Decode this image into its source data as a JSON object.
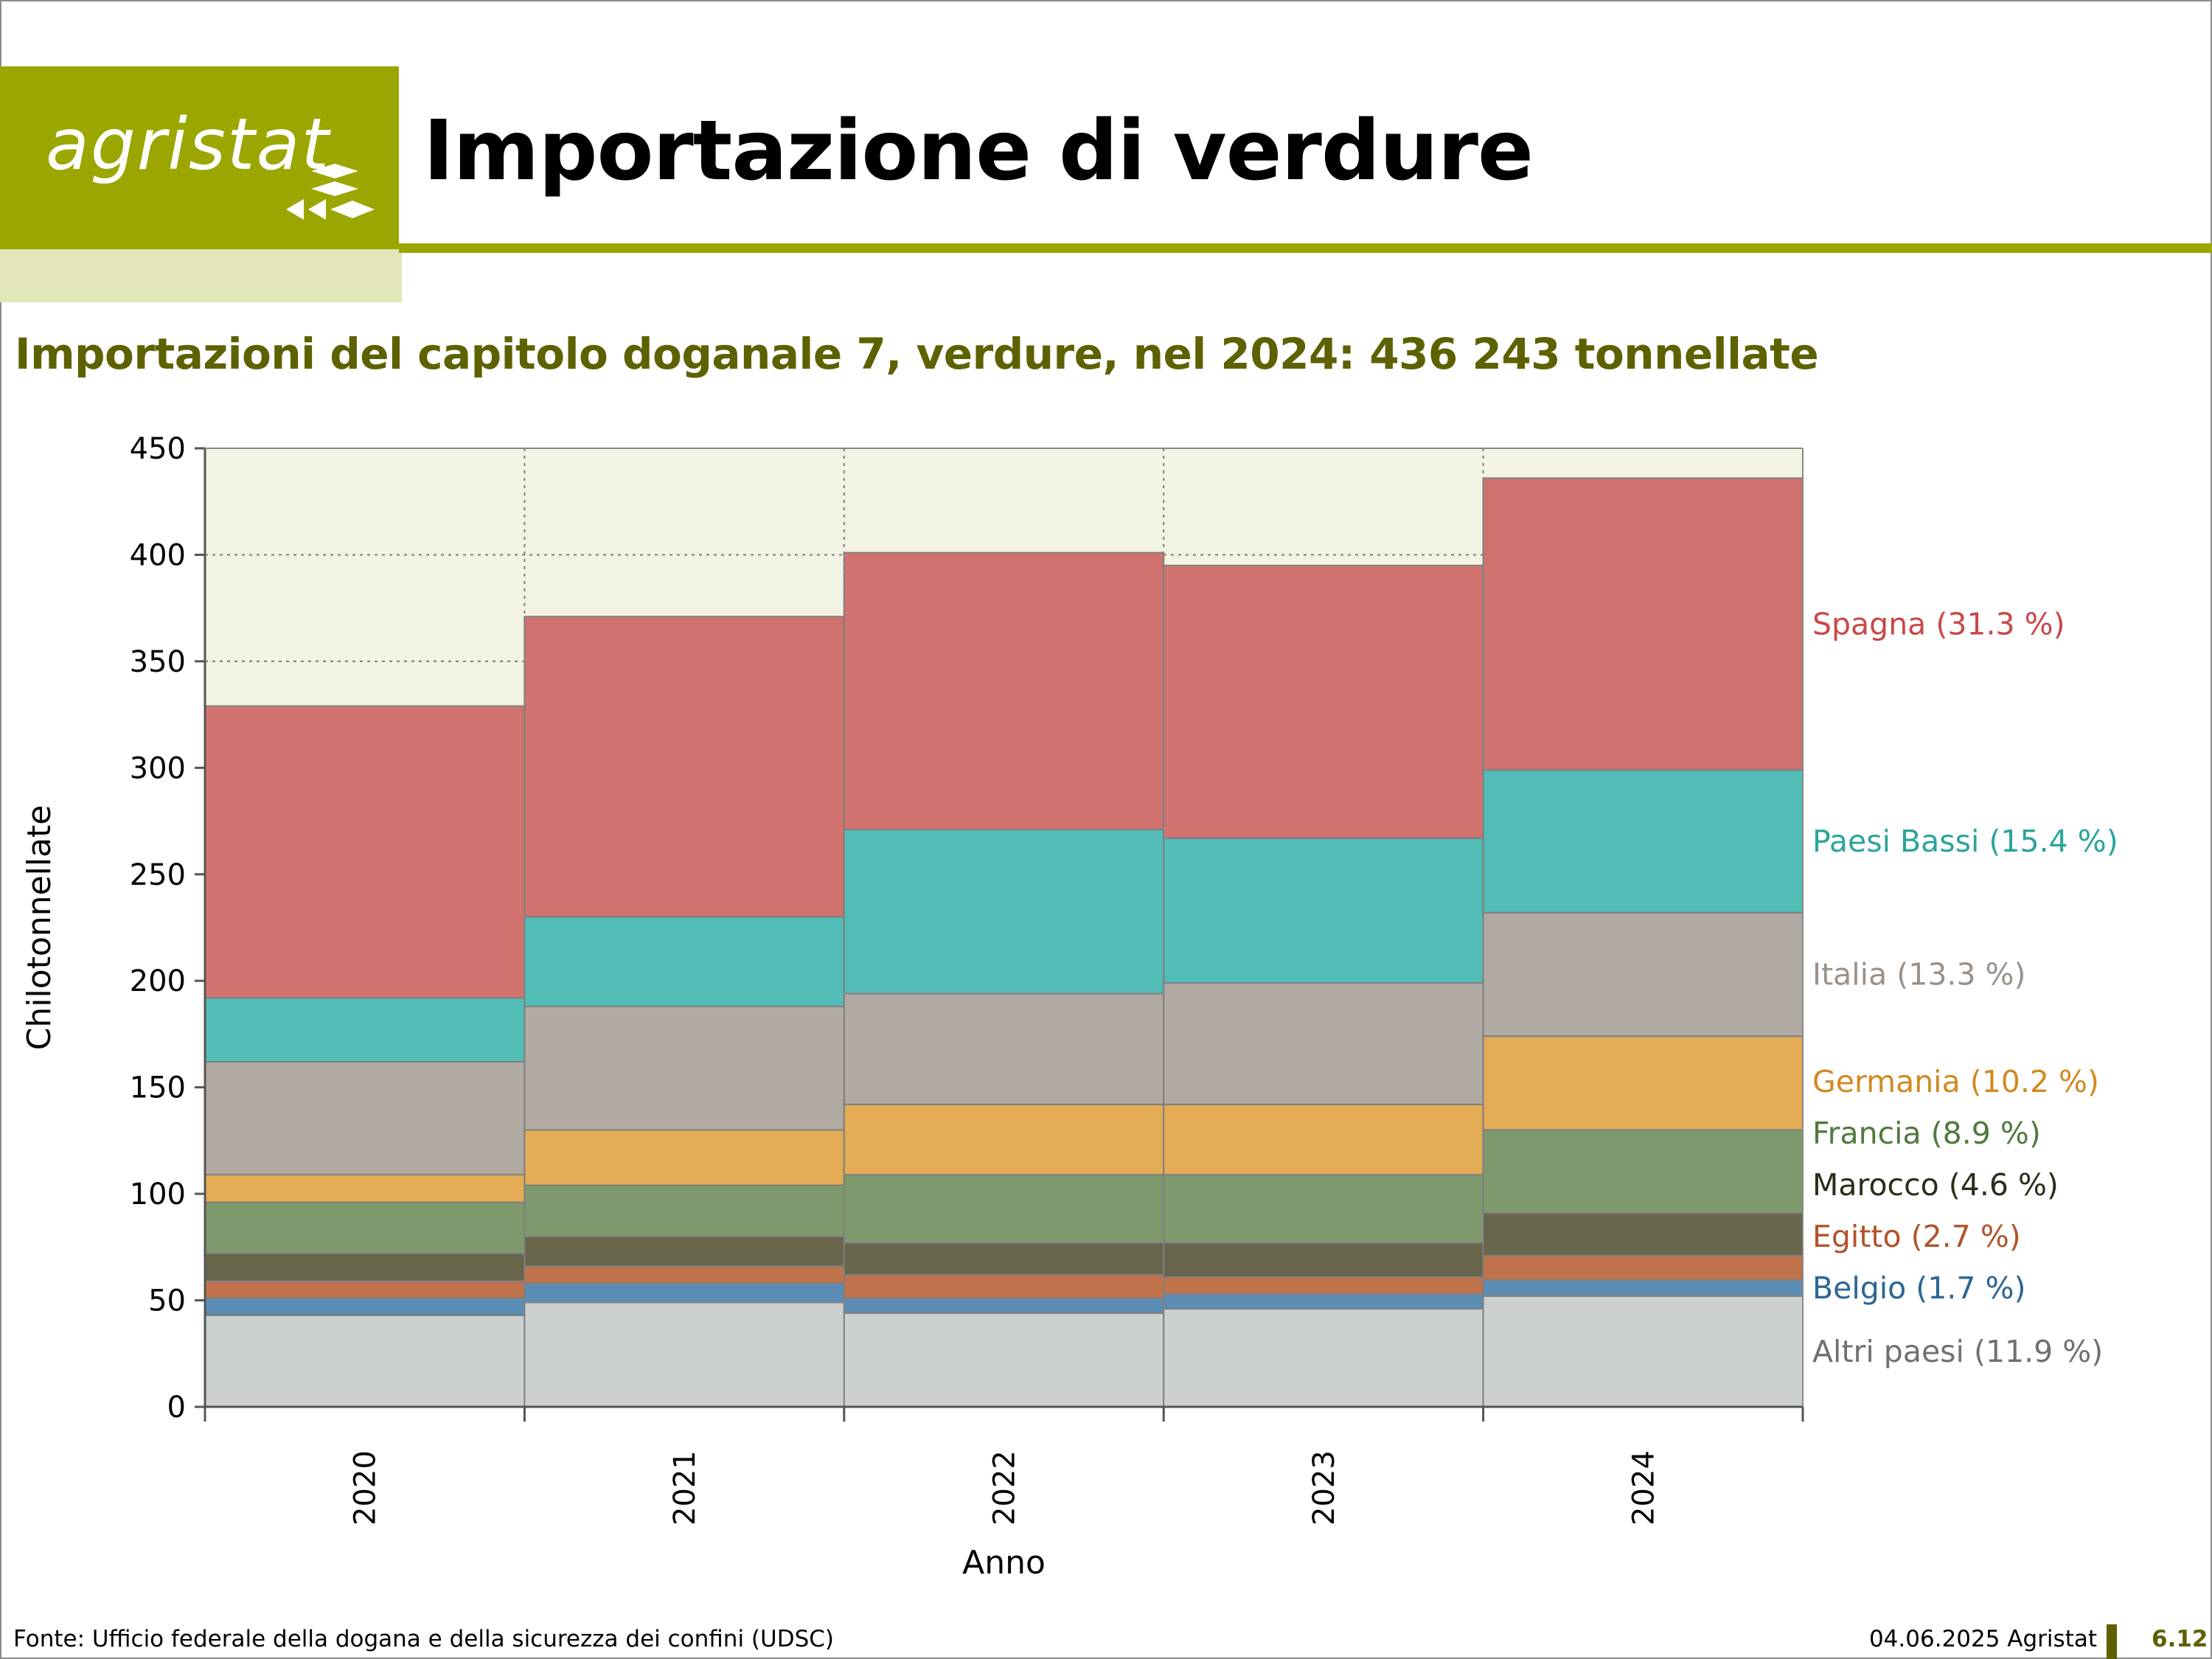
{
  "header": {
    "logo_text": "agristat",
    "title": "Importazione di verdure",
    "subtitle": "Importazioni del capitolo doganale 7, verdure, nel 2024: 436 243 tonnellate"
  },
  "footer": {
    "source": "Fonte: Ufficio federale della dogana e della sicurezza dei confini (UDSC)",
    "date": "04.06.2025 Agristat",
    "page": "6.12"
  },
  "colors": {
    "brand": "#9ca600",
    "brand_light": "#e3e6b8",
    "subtitle": "#5e6100",
    "plot_background": "#f3f3e3"
  },
  "chart_data": {
    "type": "bar",
    "stacked": true,
    "xlabel": "Anno",
    "ylabel": "Chilotonnellate",
    "ylim": [
      0,
      450
    ],
    "yticks": [
      0,
      50,
      100,
      150,
      200,
      250,
      300,
      350,
      400,
      450
    ],
    "grid": true,
    "legend_placement": "right, labels aligned to 2024 segments",
    "categories": [
      "2020",
      "2021",
      "2022",
      "2023",
      "2024"
    ],
    "series": [
      {
        "name": "Altri paesi (11.9 %)",
        "color": "#ccd1d0",
        "label_color": "#707070",
        "values": [
          43,
          49,
          44,
          46,
          52
        ]
      },
      {
        "name": "Belgio (1.7 %)",
        "color": "#5b8db4",
        "label_color": "#2c6694",
        "values": [
          8,
          9,
          7,
          7,
          7.5
        ]
      },
      {
        "name": "Egitto (2.7 %)",
        "color": "#c0724a",
        "label_color": "#b2532a",
        "values": [
          8,
          8,
          11,
          8,
          11.5
        ]
      },
      {
        "name": "Marocco (4.6 %)",
        "color": "#67654a",
        "label_color": "#2e2c1a",
        "values": [
          13,
          14,
          15,
          16,
          20
        ]
      },
      {
        "name": "Francia (8.9 %)",
        "color": "#7e9a6c",
        "label_color": "#4f7a3e",
        "values": [
          24,
          24,
          32,
          32,
          39
        ]
      },
      {
        "name": "Germania (10.2 %)",
        "color": "#e3ac55",
        "label_color": "#d08a22",
        "values": [
          13,
          26,
          33,
          33,
          44
        ]
      },
      {
        "name": "Italia (13.3 %)",
        "color": "#b1aaa3",
        "label_color": "#9a918a",
        "values": [
          53,
          58,
          52,
          57,
          58
        ]
      },
      {
        "name": "Paesi Bassi (15.4 %)",
        "color": "#52bdb6",
        "label_color": "#2ca49c",
        "values": [
          30,
          42,
          77,
          68,
          67
        ]
      },
      {
        "name": "Spagna (31.3 %)",
        "color": "#d0736f",
        "label_color": "#c84848",
        "values": [
          137,
          141,
          130,
          128,
          137
        ]
      }
    ]
  }
}
